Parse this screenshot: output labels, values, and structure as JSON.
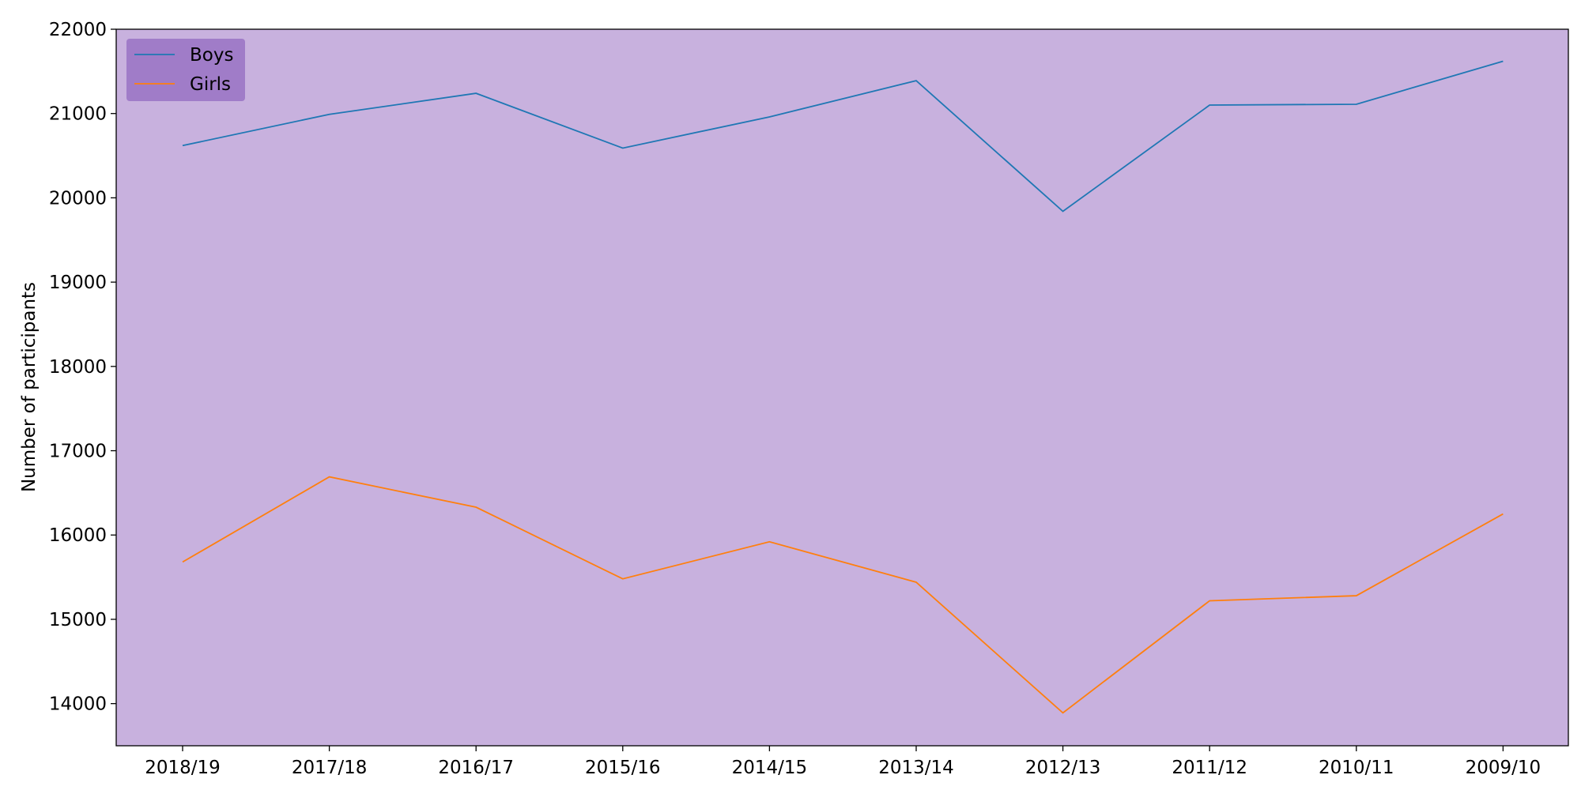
{
  "chart_data": {
    "type": "line",
    "title": "",
    "xlabel": "",
    "ylabel": "Number of participants",
    "categories": [
      "2018/19",
      "2017/18",
      "2016/17",
      "2015/16",
      "2014/15",
      "2013/14",
      "2012/13",
      "2011/12",
      "2010/11",
      "2009/10"
    ],
    "ylim": [
      13500,
      22000
    ],
    "yticks": [
      14000,
      15000,
      16000,
      17000,
      18000,
      19000,
      20000,
      21000,
      22000
    ],
    "grid": false,
    "legend_position": "top-left",
    "background_color": "#c8b1de",
    "legend_background": "#a07cc8",
    "series": [
      {
        "name": "Boys",
        "color": "#1f77b4",
        "values": [
          20620,
          20990,
          21240,
          20590,
          20960,
          21390,
          19840,
          21100,
          21110,
          21620
        ]
      },
      {
        "name": "Girls",
        "color": "#ff7f0e",
        "values": [
          15680,
          16690,
          16330,
          15480,
          15920,
          15440,
          13890,
          15220,
          15280,
          16250
        ]
      }
    ]
  }
}
